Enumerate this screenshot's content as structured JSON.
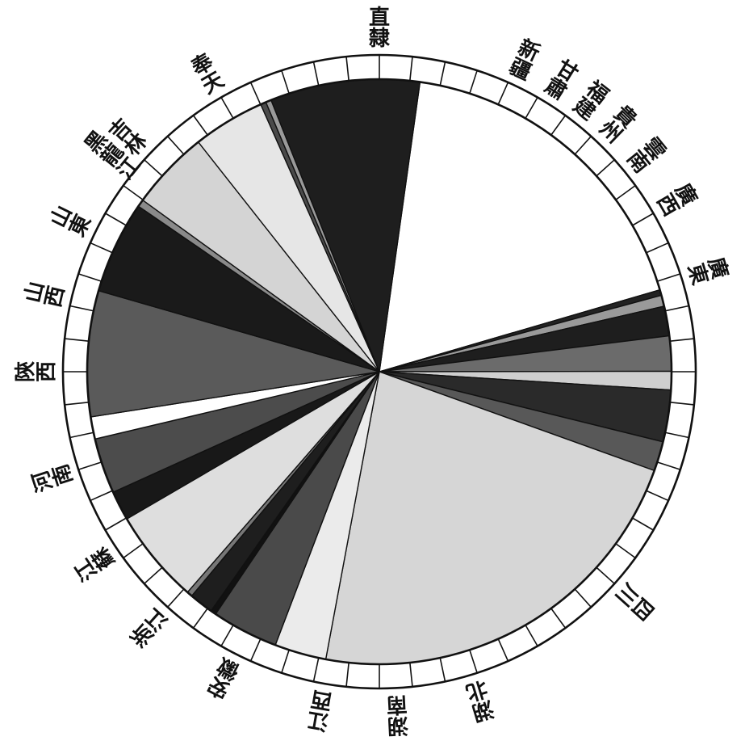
{
  "chart_data": {
    "type": "pie",
    "title": "",
    "start_angle_deg": 82,
    "direction": "clockwise",
    "outer_ring_ticks": 60,
    "slices": [
      {
        "label": "直隸",
        "value": 17.9,
        "shade": "#ffffff"
      },
      {
        "label": "新疆",
        "value": 0.3,
        "shade": "#222222"
      },
      {
        "label": "甘肅",
        "value": 0.6,
        "shade": "#9a9a9a"
      },
      {
        "label": "福建",
        "value": 1.6,
        "shade": "#1e1e1e"
      },
      {
        "label": "貴州",
        "value": 1.9,
        "shade": "#6b6b6b"
      },
      {
        "label": "雲南",
        "value": 1.0,
        "shade": "#cfcfcf"
      },
      {
        "label": "廣西",
        "value": 2.8,
        "shade": "#2a2a2a"
      },
      {
        "label": "廣東",
        "value": 1.6,
        "shade": "#585858"
      },
      {
        "label": "四川",
        "value": 22.0,
        "shade": "#d6d6d6"
      },
      {
        "label": "湖北",
        "value": 2.8,
        "shade": "#ebebeb"
      },
      {
        "label": "湖南",
        "value": 3.6,
        "shade": "#4a4a4a"
      },
      {
        "label": "江西",
        "value": 0.3,
        "shade": "#111111"
      },
      {
        "label": "江西",
        "value": 1.3,
        "shade": "#1e1e1e"
      },
      {
        "label": "安徽",
        "value": 0.3,
        "shade": "#777777"
      },
      {
        "label": "安徽",
        "value": 5.1,
        "shade": "#dedede"
      },
      {
        "label": "浙江",
        "value": 1.6,
        "shade": "#181818"
      },
      {
        "label": "浙江",
        "value": 3.0,
        "shade": "#4c4c4c"
      },
      {
        "label": "江蘇",
        "value": 1.2,
        "shade": "#ffffff"
      },
      {
        "label": "河南",
        "value": 6.8,
        "shade": "#5a5a5a"
      },
      {
        "label": "陝西",
        "value": 5.0,
        "shade": "#1a1a1a"
      },
      {
        "label": "陝西",
        "value": 0.4,
        "shade": "#8a8a8a"
      },
      {
        "label": "山西",
        "value": 4.3,
        "shade": "#d4d4d4"
      },
      {
        "label": "山東",
        "value": 3.9,
        "shade": "#e6e6e6"
      },
      {
        "label": "黑龍江",
        "value": 0.3,
        "shade": "#4a4a4a"
      },
      {
        "label": "吉林",
        "value": 0.3,
        "shade": "#9a9a9a"
      },
      {
        "label": "奉天",
        "value": 8.1,
        "shade": "#1e1e1e"
      }
    ],
    "labels": [
      {
        "text": "直隸",
        "angle_deg": 90,
        "lines": [
          "直",
          "隸"
        ]
      },
      {
        "text": "新疆",
        "angle_deg": 65,
        "lines": [
          "新",
          "疆"
        ]
      },
      {
        "text": "甘肅",
        "angle_deg": 58,
        "lines": [
          "甘",
          "肅"
        ]
      },
      {
        "text": "福建",
        "angle_deg": 52,
        "lines": [
          "福",
          "建"
        ]
      },
      {
        "text": "貴州",
        "angle_deg": 46,
        "lines": [
          "貴",
          "州"
        ]
      },
      {
        "text": "雲南",
        "angle_deg": 39,
        "lines": [
          "雲",
          "南"
        ]
      },
      {
        "text": "廣西",
        "angle_deg": 30,
        "lines": [
          "廣",
          "西"
        ]
      },
      {
        "text": "廣東",
        "angle_deg": 17,
        "lines": [
          "廣",
          "東"
        ]
      },
      {
        "text": "四川",
        "angle_deg": -42,
        "lines": [
          "四",
          "川"
        ]
      },
      {
        "text": "湖北",
        "angle_deg": -73,
        "lines": [
          "湖",
          "北"
        ]
      },
      {
        "text": "湖南",
        "angle_deg": -87,
        "lines": [
          "湖",
          "南"
        ]
      },
      {
        "text": "江西",
        "angle_deg": -100,
        "lines": [
          "江",
          "西"
        ]
      },
      {
        "text": "安徽",
        "angle_deg": -117,
        "lines": [
          "安",
          "徽"
        ]
      },
      {
        "text": "浙江",
        "angle_deg": -132,
        "lines": [
          "浙",
          "江"
        ]
      },
      {
        "text": "江蘇",
        "angle_deg": -146,
        "lines": [
          "江",
          "蘇"
        ]
      },
      {
        "text": "河南",
        "angle_deg": -162,
        "lines": [
          "河",
          "南"
        ]
      },
      {
        "text": "陝西",
        "angle_deg": -180,
        "lines": [
          "陝",
          "西"
        ]
      },
      {
        "text": "山西",
        "angle_deg": 167,
        "lines": [
          "山",
          "西"
        ]
      },
      {
        "text": "山東",
        "angle_deg": 154,
        "lines": [
          "山",
          "東"
        ]
      },
      {
        "text": "黑龍江",
        "angle_deg": 141,
        "lines": [
          "黑",
          "龍",
          "江"
        ]
      },
      {
        "text": "吉林",
        "angle_deg": 137,
        "lines": [
          "吉",
          "林"
        ]
      },
      {
        "text": "奉天",
        "angle_deg": 120,
        "lines": [
          "奉",
          "天"
        ]
      }
    ]
  }
}
